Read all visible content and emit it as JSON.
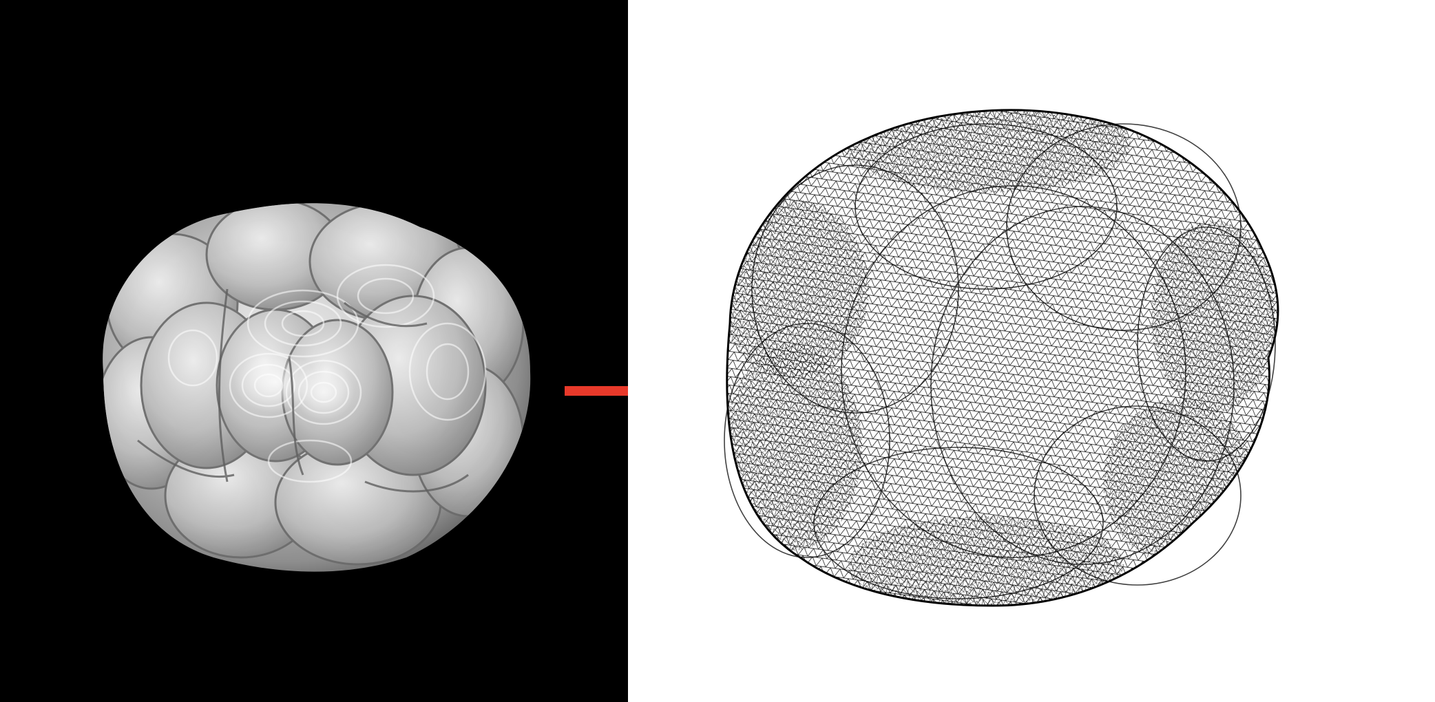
{
  "figure": {
    "left_panel": {
      "background": "#000000",
      "content": "volume-rendered-embryo-icon"
    },
    "right_panel": {
      "background": "#ffffff",
      "content": "triangle-mesh-icon"
    },
    "arrow": {
      "color": "#e8392a",
      "direction": "right"
    }
  }
}
